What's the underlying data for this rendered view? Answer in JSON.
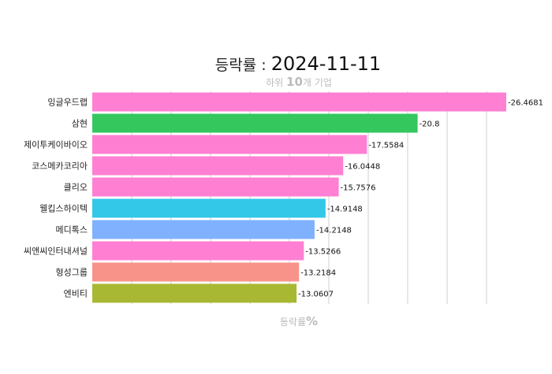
{
  "chart_data": {
    "type": "bar",
    "orientation": "horizontal",
    "title_prefix": "등락률 : ",
    "title_date": "2024-11-11",
    "subtitle_prefix": "하위 ",
    "subtitle_count": "10",
    "subtitle_suffix": "개 기업",
    "xlabel_prefix": "등락률",
    "xlabel_unit": "%",
    "categories": [
      "잉글우드랩",
      "삼현",
      "제이투케이바이오",
      "코스메카코리아",
      "클리오",
      "웰킵스하이텍",
      "메디톡스",
      "씨앤씨인터내셔널",
      "형성그룹",
      "엔비티"
    ],
    "values": [
      -26.4681,
      -20.8,
      -17.5584,
      -16.0448,
      -15.7576,
      -14.9148,
      -14.2148,
      -13.5266,
      -13.2184,
      -13.0607
    ],
    "value_labels": [
      "-26.4681",
      "-20.8",
      "-17.5584",
      "-16.0448",
      "-15.7576",
      "-14.9148",
      "-14.2148",
      "-13.5266",
      "-13.2184",
      "-13.0607"
    ],
    "colors": [
      "#ff7fd2",
      "#33c75e",
      "#ff7fd2",
      "#ff7fd2",
      "#ff7fd2",
      "#33c7e8",
      "#80b1ff",
      "#ff7fd2",
      "#f8938a",
      "#a8b832"
    ],
    "grid": true,
    "xaxis_ticks_shown": false
  }
}
